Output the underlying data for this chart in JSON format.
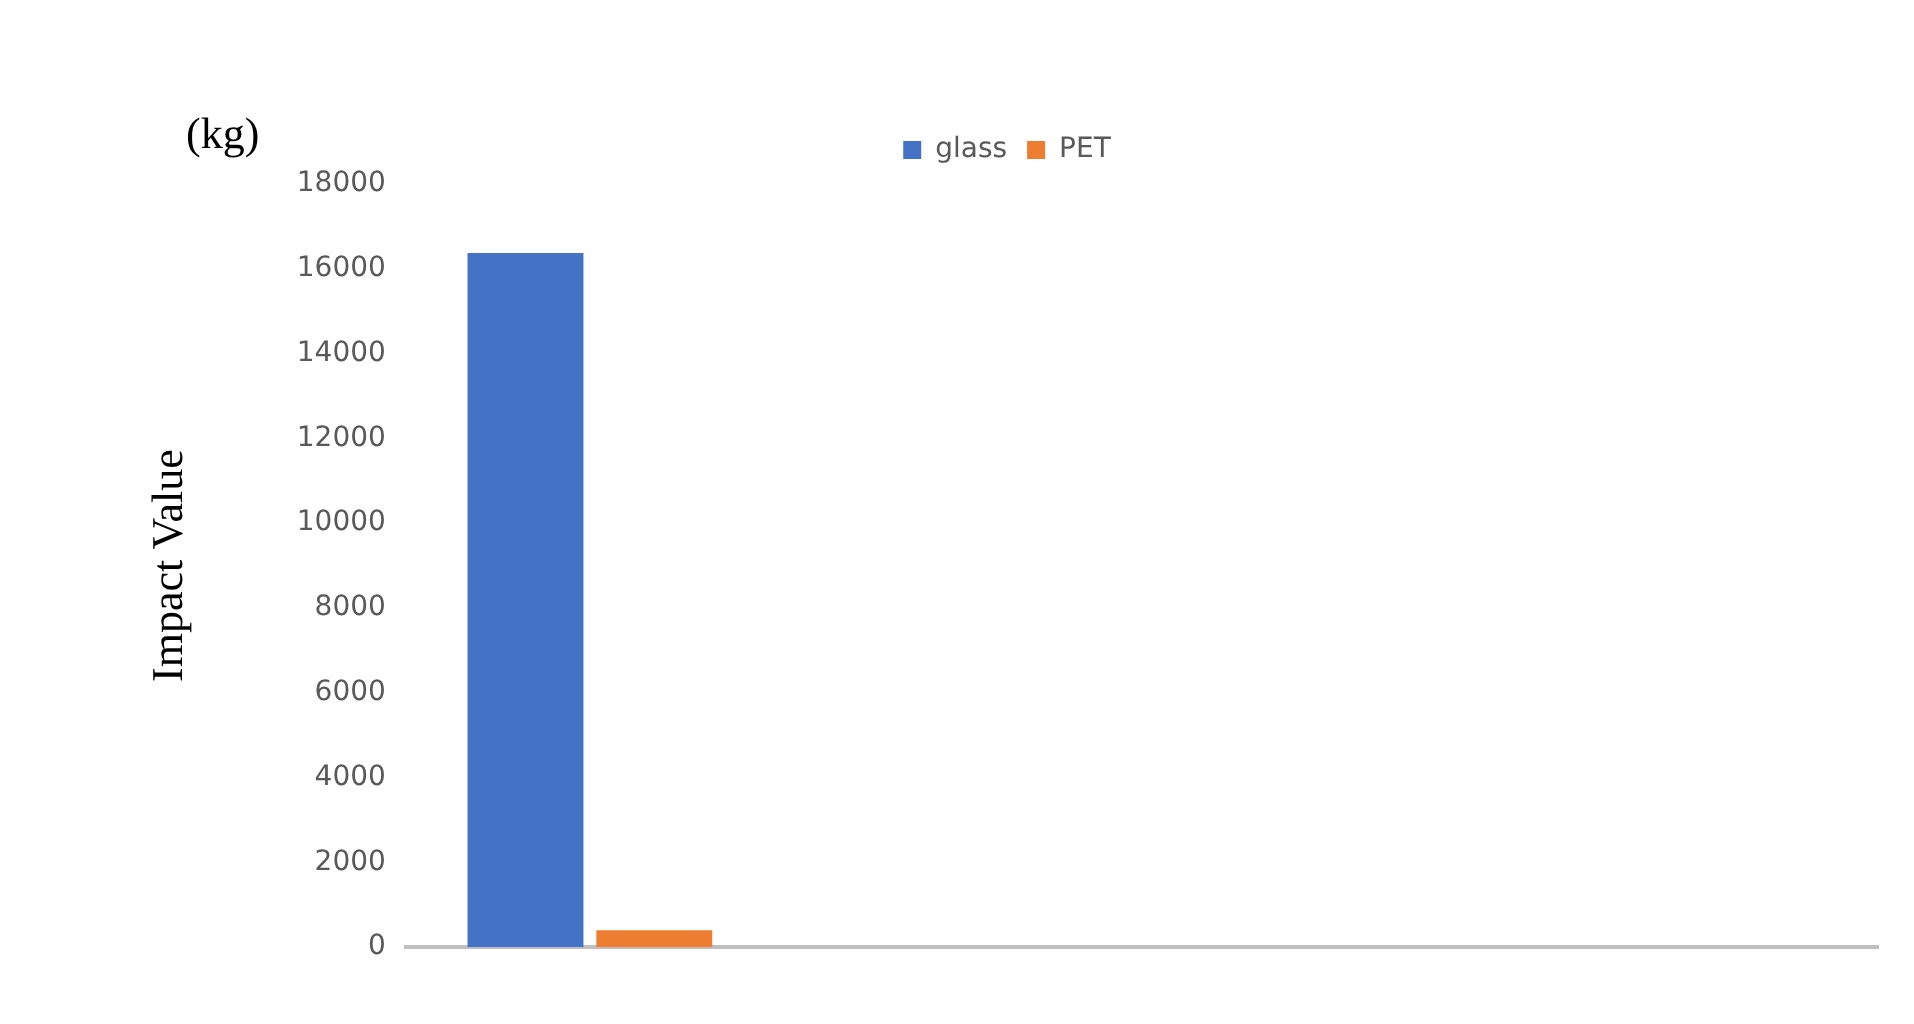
{
  "chart_data": {
    "type": "bar",
    "ylabel": "Impact Value",
    "annotations": [
      "(kg)"
    ],
    "categories": [
      null,
      null,
      null,
      null
    ],
    "series": [
      {
        "name": "glass",
        "color": "#4472c4",
        "values": [
          16370,
          null,
          null,
          null
        ]
      },
      {
        "name": "PET",
        "color": "#ed7d31",
        "values": [
          400,
          null,
          null,
          null
        ]
      }
    ],
    "ylim": [
      0,
      18000
    ],
    "yticks": [
      0,
      2000,
      4000,
      6000,
      8000,
      10000,
      12000,
      14000,
      16000,
      18000
    ],
    "grid": false,
    "legend": "top"
  }
}
